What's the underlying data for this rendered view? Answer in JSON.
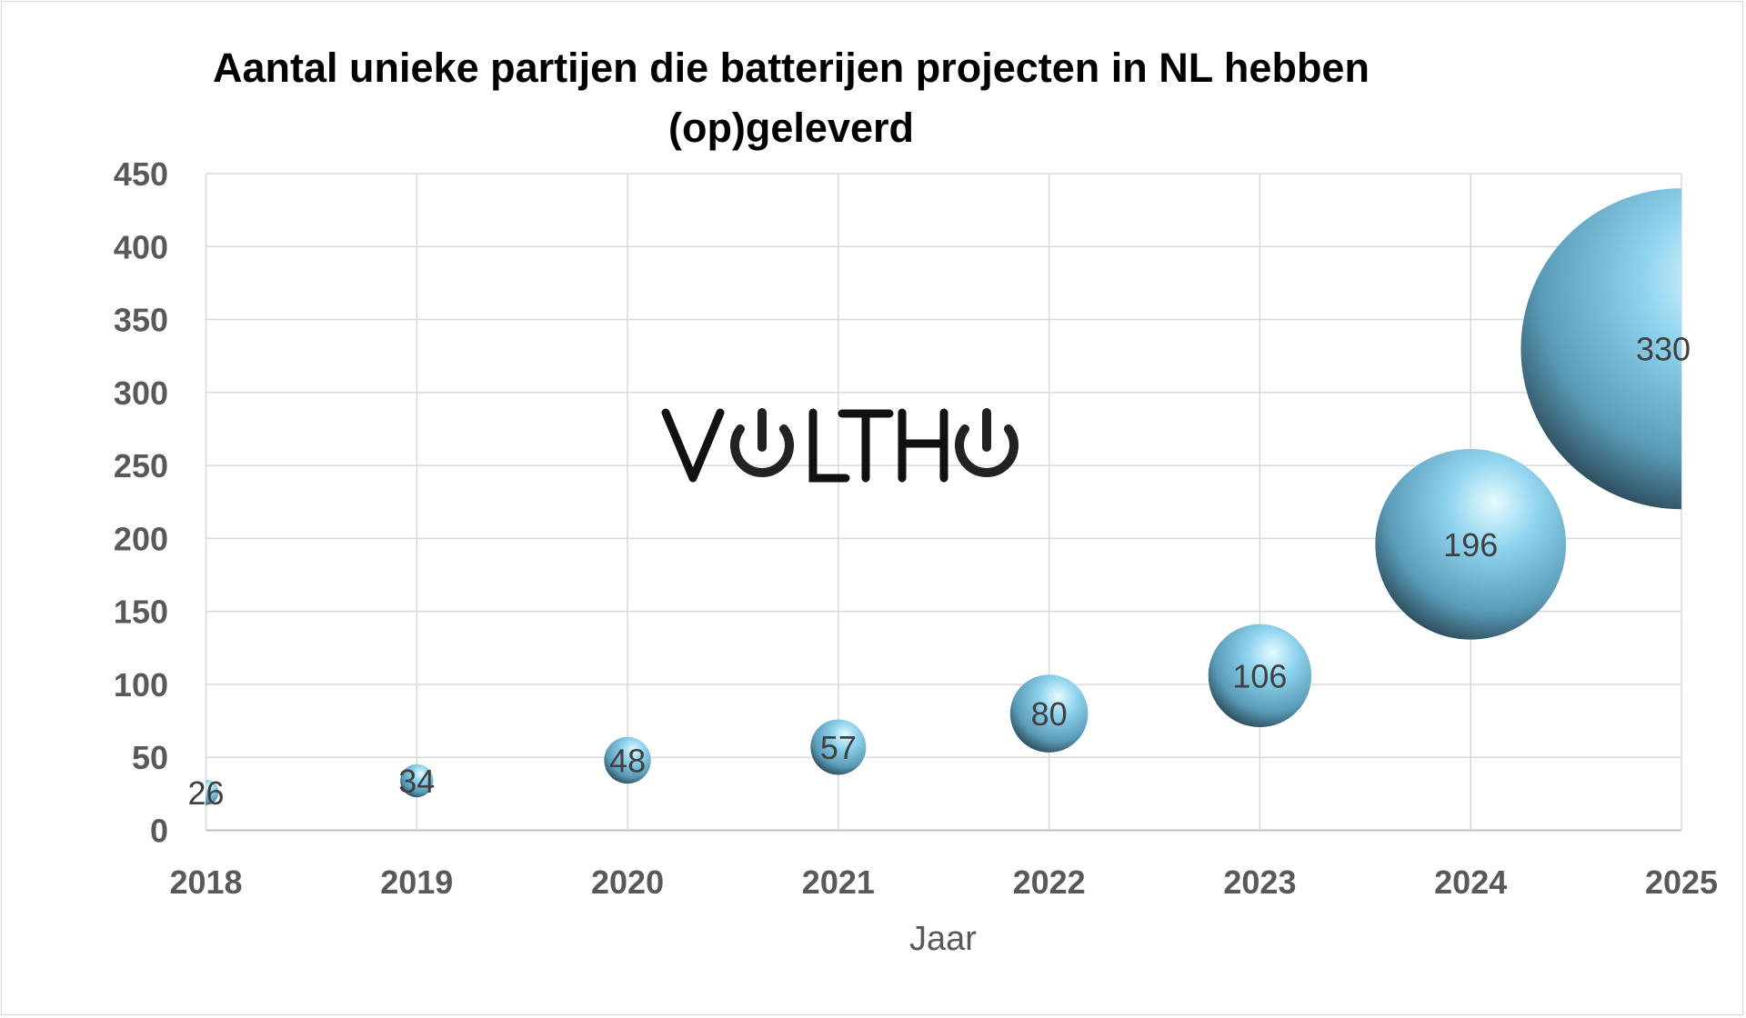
{
  "chart_data": {
    "type": "bubble",
    "title_lines": [
      "Aantal unieke partijen die batterijen projecten in NL hebben",
      "(op)geleverd"
    ],
    "xlabel": "Jaar",
    "ylabel": "",
    "x": [
      2018,
      2019,
      2020,
      2021,
      2022,
      2023,
      2024,
      2025
    ],
    "values": [
      26,
      34,
      48,
      57,
      80,
      106,
      196,
      330
    ],
    "data_labels": [
      "26",
      "34",
      "48",
      "57",
      "80",
      "106",
      "196",
      "330"
    ],
    "xlim": [
      2018,
      2025
    ],
    "ylim": [
      0,
      450
    ],
    "yticks": [
      0,
      50,
      100,
      150,
      200,
      250,
      300,
      350,
      400,
      450
    ],
    "xticks": [
      2018,
      2019,
      2020,
      2021,
      2022,
      2023,
      2024,
      2025
    ],
    "grid": true,
    "legend": "none",
    "bubble_color": "#7fc8e6",
    "watermark_logo": "VOLTHO"
  }
}
